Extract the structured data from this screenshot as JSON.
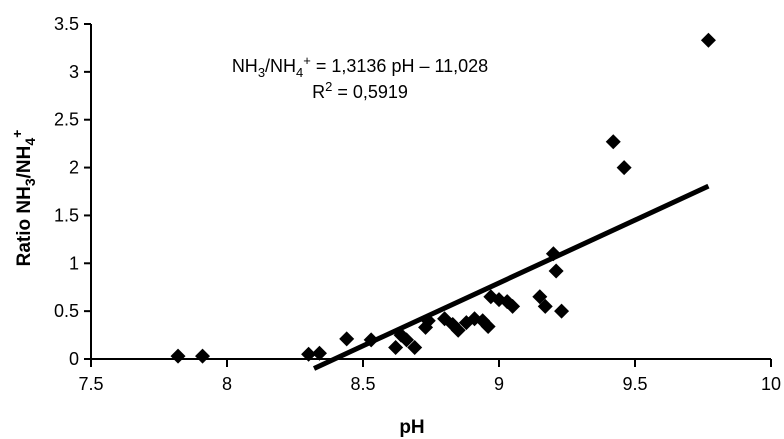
{
  "chart_data": {
    "type": "scatter",
    "xlabel": "pH",
    "ylabel_parts": {
      "a": "Ratio NH",
      "sub1": "3",
      "b": "/NH",
      "sub2": "4",
      "sup": "+"
    },
    "xlim": [
      7.5,
      10
    ],
    "ylim": [
      0,
      3.5
    ],
    "x_ticks": [
      7.5,
      8,
      8.5,
      9,
      9.5,
      10
    ],
    "x_tick_labels": [
      "7.5",
      "8",
      "8.5",
      "9",
      "9.5",
      "10"
    ],
    "y_ticks": [
      0,
      0.5,
      1,
      1.5,
      2,
      2.5,
      3,
      3.5
    ],
    "y_tick_labels": [
      "0",
      "0.5",
      "1",
      "1.5",
      "2",
      "2.5",
      "3",
      "3.5"
    ],
    "grid": false,
    "legend": "none",
    "marker": "diamond",
    "marker_color": "#000000",
    "line_color": "#000000",
    "equation": {
      "a": "NH",
      "sub1": "3",
      "b": "/NH",
      "sub2": "4",
      "sup": "+",
      "c": " = 1,3136 pH – 11,028",
      "r2_prefix": "R",
      "r2_sup": "2",
      "r2_rest": " = 0,5919"
    },
    "trendline": {
      "slope": 1.3136,
      "intercept": -11.028,
      "x_range": [
        8.32,
        9.77
      ]
    },
    "points": [
      {
        "x": 7.82,
        "y": 0.03
      },
      {
        "x": 7.91,
        "y": 0.03
      },
      {
        "x": 8.3,
        "y": 0.05
      },
      {
        "x": 8.34,
        "y": 0.06
      },
      {
        "x": 8.44,
        "y": 0.21
      },
      {
        "x": 8.53,
        "y": 0.2
      },
      {
        "x": 8.62,
        "y": 0.12
      },
      {
        "x": 8.64,
        "y": 0.25
      },
      {
        "x": 8.66,
        "y": 0.2
      },
      {
        "x": 8.69,
        "y": 0.12
      },
      {
        "x": 8.73,
        "y": 0.33
      },
      {
        "x": 8.74,
        "y": 0.4
      },
      {
        "x": 8.8,
        "y": 0.42
      },
      {
        "x": 8.83,
        "y": 0.36
      },
      {
        "x": 8.85,
        "y": 0.3
      },
      {
        "x": 8.88,
        "y": 0.38
      },
      {
        "x": 8.91,
        "y": 0.42
      },
      {
        "x": 8.94,
        "y": 0.4
      },
      {
        "x": 8.96,
        "y": 0.34
      },
      {
        "x": 8.97,
        "y": 0.65
      },
      {
        "x": 9.0,
        "y": 0.62
      },
      {
        "x": 9.03,
        "y": 0.6
      },
      {
        "x": 9.05,
        "y": 0.55
      },
      {
        "x": 9.15,
        "y": 0.65
      },
      {
        "x": 9.17,
        "y": 0.55
      },
      {
        "x": 9.2,
        "y": 1.1
      },
      {
        "x": 9.21,
        "y": 0.92
      },
      {
        "x": 9.23,
        "y": 0.5
      },
      {
        "x": 9.42,
        "y": 2.27
      },
      {
        "x": 9.46,
        "y": 2.0
      },
      {
        "x": 9.77,
        "y": 3.33
      }
    ]
  }
}
